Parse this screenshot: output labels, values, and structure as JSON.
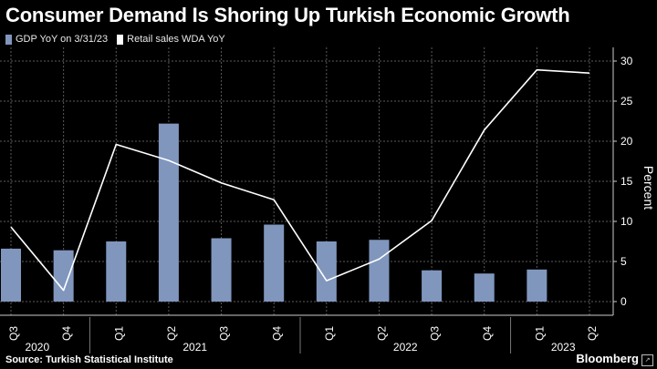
{
  "title": "Consumer Demand Is Shoring Up Turkish Economic Growth",
  "legend": {
    "gdp_label": "GDP YoY on 3/31/23",
    "retail_label": "Retail sales WDA YoY"
  },
  "source": "Source: Turkish Statistical Institute",
  "brand": "Bloomberg",
  "colors": {
    "bar": "#8096bd",
    "line": "#ffffff",
    "grid": "#5a5a5a",
    "background": "#000000"
  },
  "chart_data": {
    "type": "bar",
    "categories": [
      "Q3",
      "Q4",
      "Q1",
      "Q2",
      "Q3",
      "Q4",
      "Q1",
      "Q2",
      "Q3",
      "Q4",
      "Q1",
      "Q2"
    ],
    "years": [
      {
        "label": "2020",
        "start": 0,
        "end": 1
      },
      {
        "label": "2021",
        "start": 2,
        "end": 5
      },
      {
        "label": "2022",
        "start": 6,
        "end": 9
      },
      {
        "label": "2023",
        "start": 10,
        "end": 11
      }
    ],
    "series": [
      {
        "name": "GDP YoY on 3/31/23",
        "type": "bar",
        "values": [
          6.6,
          6.4,
          7.5,
          22.2,
          7.9,
          9.6,
          7.5,
          7.7,
          3.9,
          3.5,
          4.0,
          null
        ]
      },
      {
        "name": "Retail sales WDA YoY",
        "type": "line",
        "values": [
          9.3,
          1.4,
          19.6,
          17.6,
          14.8,
          12.7,
          2.6,
          5.3,
          10.1,
          21.4,
          28.9,
          28.5
        ]
      }
    ],
    "ylabel": "Percent",
    "ylim": [
      -2,
      31
    ],
    "yticks": [
      0,
      5,
      10,
      15,
      20,
      25,
      30
    ],
    "grid": true,
    "legend_position": "top-left"
  }
}
